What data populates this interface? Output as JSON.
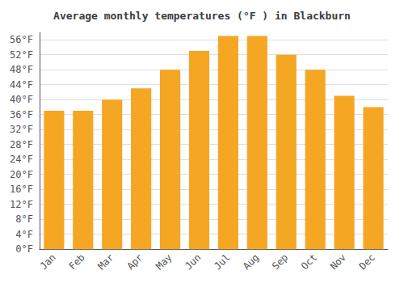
{
  "chart_data": {
    "type": "bar",
    "title": "Average monthly temperatures (°F ) in Blackburn",
    "categories": [
      "Jan",
      "Feb",
      "Mar",
      "Apr",
      "May",
      "Jun",
      "Jul",
      "Aug",
      "Sep",
      "Oct",
      "Nov",
      "Dec"
    ],
    "values": [
      37,
      37,
      40,
      43,
      48,
      53,
      57,
      57,
      52,
      48,
      41,
      38
    ],
    "color": "#F5A623",
    "ylim": [
      0,
      58
    ],
    "yticks": [
      {
        "value": 0,
        "label": "0°F"
      },
      {
        "value": 4,
        "label": "4°F"
      },
      {
        "value": 8,
        "label": "8°F"
      },
      {
        "value": 12,
        "label": "12°F"
      },
      {
        "value": 16,
        "label": "16°F"
      },
      {
        "value": 20,
        "label": "20°F"
      },
      {
        "value": 24,
        "label": "24°F"
      },
      {
        "value": 28,
        "label": "28°F"
      },
      {
        "value": 32,
        "label": "32°F"
      },
      {
        "value": 36,
        "label": "36°F"
      },
      {
        "value": 40,
        "label": "40°F"
      },
      {
        "value": 44,
        "label": "44°F"
      },
      {
        "value": 48,
        "label": "48°F"
      },
      {
        "value": 52,
        "label": "52°F"
      },
      {
        "value": 56,
        "label": "56°F"
      }
    ],
    "grid": true
  }
}
